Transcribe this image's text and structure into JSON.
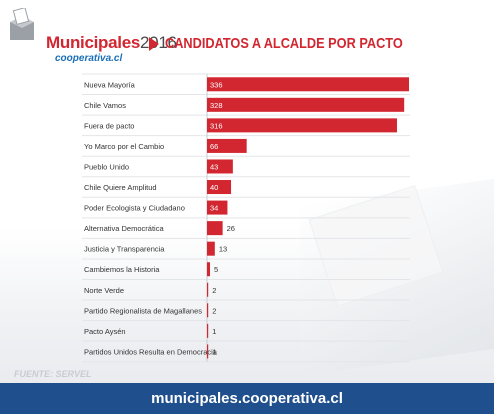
{
  "header": {
    "brand_main": "Municipales",
    "brand_year": "2016",
    "brand_sub": "cooperativa.cl",
    "title": "CANDIDATOS A ALCALDE POR PACTO"
  },
  "source": "FUENTE: SERVEL",
  "footer": {
    "url": "municipales.cooperativa.cl"
  },
  "colors": {
    "accent": "#d22630",
    "footer": "#1f4f8c"
  },
  "chart_data": {
    "type": "bar",
    "orientation": "horizontal",
    "title": "CANDIDATOS A ALCALDE POR PACTO",
    "categories": [
      "Nueva Mayoría",
      "Chile Vamos",
      "Fuera de pacto",
      "Yo Marco por el Cambio",
      "Pueblo Unido",
      "Chile Quiere Amplitud",
      "Poder Ecologista y Ciudadano",
      "Alternativa Democrática",
      "Justicia y Transparencia",
      "Cambiemos la Historia",
      "Norte Verde",
      "Partido Regionalista de Magallanes",
      "Pacto Aysén",
      "Partidos Unidos Resulta en Democracia"
    ],
    "values": [
      336,
      328,
      316,
      66,
      43,
      40,
      34,
      26,
      13,
      5,
      2,
      2,
      1,
      1
    ],
    "xlim": [
      0,
      336
    ],
    "bar_color": "#d22630",
    "grid": false
  }
}
